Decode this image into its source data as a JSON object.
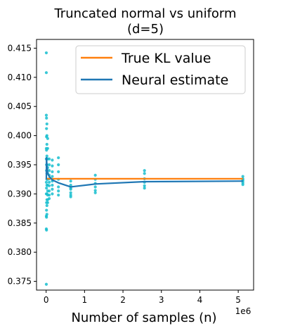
{
  "chart_data": {
    "type": "line",
    "title_line1": "Truncated normal vs uniform",
    "title_line2": "(d=5)",
    "xlabel": "Number of samples (n)",
    "ylabel": "",
    "x_scale_label": "1e6",
    "xlim": [
      -0.25,
      5.4
    ],
    "ylim": [
      0.3735,
      0.4165
    ],
    "x_ticks": [
      0,
      1,
      2,
      3,
      4,
      5
    ],
    "x_tick_labels": [
      "0",
      "1",
      "2",
      "3",
      "4",
      "5"
    ],
    "y_ticks": [
      0.375,
      0.38,
      0.385,
      0.39,
      0.395,
      0.4,
      0.405,
      0.41,
      0.415
    ],
    "y_tick_labels": [
      "0.375",
      "0.380",
      "0.385",
      "0.390",
      "0.395",
      "0.400",
      "0.405",
      "0.410",
      "0.415"
    ],
    "legend_position": "top-right",
    "grid": false,
    "colors": {
      "true_kl": "#ff7f0e",
      "neural": "#1f77b4",
      "points": "#17becf"
    },
    "series": [
      {
        "name": "True KL value",
        "color": "#ff7f0e",
        "x": [
          0.005,
          5.12
        ],
        "y": [
          0.3926,
          0.3926
        ]
      },
      {
        "name": "Neural estimate",
        "color": "#1f77b4",
        "x": [
          0.005,
          0.01,
          0.02,
          0.04,
          0.08,
          0.16,
          0.32,
          0.64,
          1.28,
          2.56,
          5.12
        ],
        "y": [
          0.3925,
          0.3962,
          0.3948,
          0.3935,
          0.393,
          0.3924,
          0.3919,
          0.3912,
          0.3917,
          0.3921,
          0.3922
        ]
      }
    ],
    "scatter": {
      "x": [
        0.005,
        0.005,
        0.005,
        0.005,
        0.005,
        0.005,
        0.005,
        0.005,
        0.005,
        0.005,
        0.01,
        0.01,
        0.01,
        0.01,
        0.01,
        0.01,
        0.01,
        0.01,
        0.01,
        0.01,
        0.01,
        0.01,
        0.02,
        0.02,
        0.02,
        0.02,
        0.02,
        0.02,
        0.02,
        0.02,
        0.02,
        0.02,
        0.02,
        0.02,
        0.04,
        0.04,
        0.04,
        0.04,
        0.04,
        0.04,
        0.04,
        0.04,
        0.04,
        0.04,
        0.04,
        0.08,
        0.08,
        0.08,
        0.08,
        0.08,
        0.08,
        0.08,
        0.08,
        0.08,
        0.08,
        0.16,
        0.16,
        0.16,
        0.16,
        0.16,
        0.16,
        0.16,
        0.16,
        0.32,
        0.32,
        0.32,
        0.32,
        0.32,
        0.32,
        0.32,
        0.64,
        0.64,
        0.64,
        0.64,
        0.64,
        0.64,
        0.64,
        1.28,
        1.28,
        1.28,
        1.28,
        1.28,
        1.28,
        2.56,
        2.56,
        2.56,
        2.56,
        2.56,
        2.56,
        5.12,
        5.12,
        5.12,
        5.12,
        5.12,
        5.12
      ],
      "y": [
        0.4142,
        0.4108,
        0.4035,
        0.3978,
        0.392,
        0.39,
        0.3862,
        0.384,
        0.3745,
        0.396,
        0.403,
        0.4012,
        0.3998,
        0.3975,
        0.396,
        0.395,
        0.394,
        0.391,
        0.3885,
        0.3872,
        0.386,
        0.3838,
        0.402,
        0.4,
        0.3985,
        0.3965,
        0.395,
        0.3935,
        0.3925,
        0.3915,
        0.39,
        0.389,
        0.388,
        0.3865,
        0.3995,
        0.3978,
        0.396,
        0.3945,
        0.3935,
        0.3925,
        0.3915,
        0.3905,
        0.3898,
        0.389,
        0.3885,
        0.396,
        0.395,
        0.394,
        0.3932,
        0.3926,
        0.392,
        0.3914,
        0.3905,
        0.3898,
        0.3892,
        0.3958,
        0.3948,
        0.3938,
        0.393,
        0.3922,
        0.3915,
        0.3908,
        0.39,
        0.3962,
        0.395,
        0.3938,
        0.3925,
        0.3912,
        0.3905,
        0.3898,
        0.3922,
        0.3915,
        0.3908,
        0.3902,
        0.3898,
        0.3895,
        0.391,
        0.3932,
        0.3925,
        0.3918,
        0.3912,
        0.3906,
        0.3902,
        0.394,
        0.3935,
        0.3926,
        0.392,
        0.3914,
        0.391,
        0.393,
        0.3926,
        0.3922,
        0.3919,
        0.3916,
        0.3924
      ]
    }
  }
}
